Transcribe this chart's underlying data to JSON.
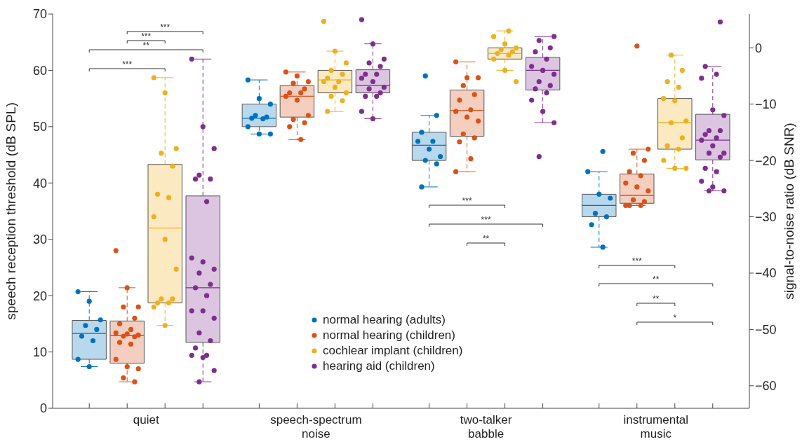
{
  "chart_data": {
    "type": "box",
    "ylabel": "speech reception threshold (dB SPL)",
    "y2label": "signal-to-noise ratio (dB SNR)",
    "categories": [
      "quiet",
      "speech-spectrum noise",
      "two-talker babble",
      "instrumental music"
    ],
    "ylim": [
      0,
      70
    ],
    "yticks": [
      0,
      10,
      20,
      30,
      40,
      50,
      60,
      70
    ],
    "y2lim": [
      -64,
      6
    ],
    "y2ticks": [
      -60,
      -50,
      -40,
      -30,
      -20,
      -10,
      0
    ],
    "grid": false,
    "legend": "bottom",
    "marker": "circle",
    "annotations": [
      "***",
      "**",
      "***",
      "***",
      "***",
      "***",
      "**",
      "***",
      "**",
      "**",
      "*"
    ],
    "series": [
      {
        "name": "normal hearing (adults)",
        "color": "#0072bd",
        "axis": "y",
        "boxes": [
          {
            "low": 7.4,
            "q1": 8.7,
            "median": 13.3,
            "q3": 15.6,
            "high": 20.7
          },
          null,
          null,
          null
        ]
      },
      {
        "name": "normal hearing (children)",
        "color": "#d95319",
        "axis": "y",
        "boxes": [
          {
            "low": 4.7,
            "q1": 8.0,
            "median": 12.9,
            "q3": 15.5,
            "high": 21.4
          },
          null,
          null,
          null
        ]
      },
      {
        "name": "cochlear implant (children)",
        "color": "#edb120",
        "axis": "y",
        "boxes": [
          {
            "low": 14.7,
            "q1": 18.7,
            "median": 32.0,
            "q3": 43.3,
            "high": 58.7
          },
          null,
          null,
          null
        ]
      },
      {
        "name": "hearing aid (children)",
        "color": "#7e2f8e",
        "axis": "y",
        "boxes": [
          {
            "low": 4.7,
            "q1": 11.7,
            "median": 21.4,
            "q3": 37.7,
            "high": 62.0
          },
          null,
          null,
          null
        ]
      },
      {
        "color": "#0072bd",
        "axis": "y2",
        "boxes": [
          null,
          {
            "low": -15.3,
            "q1": -14.0,
            "median": -12.5,
            "q3": -10.0,
            "high": -5.7
          },
          {
            "low": -24.7,
            "q1": -20.0,
            "median": -17.3,
            "q3": -15.0,
            "high": -12.0
          },
          {
            "low": -35.4,
            "q1": -30.0,
            "median": -28.0,
            "q3": -26.0,
            "high": -22.0
          }
        ]
      },
      {
        "color": "#d95319",
        "axis": "y2",
        "boxes": [
          null,
          {
            "low": -16.3,
            "q1": -12.3,
            "median": -8.6,
            "q3": -6.7,
            "high": -4.3
          },
          {
            "low": -22.0,
            "q1": -15.7,
            "median": -11.1,
            "q3": -7.5,
            "high": -2.5
          },
          {
            "low": -28.0,
            "q1": -27.6,
            "median": -26.2,
            "q3": -22.4,
            "high": -18.0
          }
        ]
      },
      {
        "color": "#edb120",
        "axis": "y2",
        "boxes": [
          null,
          {
            "low": -11.3,
            "q1": -8.0,
            "median": -5.7,
            "q3": -4.0,
            "high": -0.6
          },
          {
            "low": -4.0,
            "q1": -2.0,
            "median": -1.0,
            "q3": 0.0,
            "high": 3.0
          },
          {
            "low": -21.4,
            "q1": -18.0,
            "median": -13.3,
            "q3": -9.0,
            "high": -1.3
          }
        ]
      },
      {
        "color": "#7e2f8e",
        "axis": "y2",
        "boxes": [
          null,
          {
            "low": -12.6,
            "q1": -8.0,
            "median": -6.7,
            "q3": -3.9,
            "high": 0.7
          },
          {
            "low": -13.3,
            "q1": -7.5,
            "median": -4.0,
            "q3": -1.7,
            "high": 2.0
          },
          {
            "low": -25.4,
            "q1": -19.9,
            "median": -16.4,
            "q3": -11.8,
            "high": -3.3
          }
        ]
      },
      {
        "type": "scatter",
        "color": "#0072bd",
        "axis": "y",
        "x": [
          "quiet",
          "quiet",
          "quiet",
          "quiet",
          "quiet",
          "quiet",
          "quiet",
          "quiet",
          "quiet"
        ],
        "values": [
          20.7,
          19.0,
          15.7,
          14.7,
          14.0,
          12.8,
          12.0,
          8.7,
          7.4
        ]
      },
      {
        "type": "scatter",
        "color": "#d95319",
        "axis": "y",
        "x": [
          "quiet",
          "quiet",
          "quiet",
          "quiet",
          "quiet",
          "quiet",
          "quiet",
          "quiet",
          "quiet",
          "quiet",
          "quiet",
          "quiet",
          "quiet",
          "quiet",
          "quiet",
          "quiet",
          "quiet",
          "quiet",
          "quiet"
        ],
        "values": [
          28.0,
          21.4,
          18.0,
          18.0,
          16.0,
          15.0,
          14.0,
          13.4,
          13.2,
          13.0,
          12.8,
          12.7,
          11.7,
          11.4,
          8.7,
          7.4,
          7.0,
          5.4,
          4.7
        ]
      },
      {
        "type": "scatter",
        "color": "#edb120",
        "axis": "y",
        "x": [
          "quiet",
          "quiet",
          "quiet",
          "quiet",
          "quiet",
          "quiet",
          "quiet",
          "quiet",
          "quiet",
          "quiet",
          "quiet",
          "quiet",
          "quiet",
          "quiet",
          "quiet",
          "quiet"
        ],
        "values": [
          58.7,
          56.0,
          46.1,
          45.3,
          43.0,
          38.0,
          37.4,
          34.0,
          30.0,
          24.7,
          19.4,
          19.4,
          18.7,
          18.7,
          18.0,
          14.7
        ]
      },
      {
        "type": "scatter",
        "color": "#7e2f8e",
        "axis": "y",
        "x": [
          "quiet",
          "quiet",
          "quiet",
          "quiet",
          "quiet",
          "quiet",
          "quiet",
          "quiet",
          "quiet",
          "quiet",
          "quiet",
          "quiet",
          "quiet",
          "quiet",
          "quiet",
          "quiet",
          "quiet",
          "quiet",
          "quiet",
          "quiet",
          "quiet",
          "quiet",
          "quiet",
          "quiet",
          "quiet"
        ],
        "values": [
          62.0,
          50.0,
          46.1,
          41.4,
          40.7,
          40.7,
          36.7,
          26.7,
          26.0,
          24.7,
          24.0,
          22.0,
          21.4,
          20.0,
          17.3,
          17.3,
          16.0,
          13.4,
          12.0,
          10.7,
          9.4,
          9.4,
          9.0,
          6.7,
          4.7
        ]
      },
      {
        "type": "scatter",
        "color": "#0072bd",
        "axis": "y2",
        "x": [
          "speech-spectrum noise",
          "speech-spectrum noise",
          "speech-spectrum noise",
          "speech-spectrum noise",
          "speech-spectrum noise",
          "speech-spectrum noise",
          "speech-spectrum noise",
          "speech-spectrum noise",
          "speech-spectrum noise",
          "speech-spectrum noise",
          "two-talker babble",
          "two-talker babble",
          "two-talker babble",
          "two-talker babble",
          "two-talker babble",
          "two-talker babble",
          "two-talker babble",
          "two-talker babble",
          "two-talker babble",
          "two-talker babble",
          "instrumental music",
          "instrumental music",
          "instrumental music",
          "instrumental music",
          "instrumental music",
          "instrumental music",
          "instrumental music",
          "instrumental music"
        ],
        "values": [
          -5.7,
          -9.0,
          -10.0,
          -12.0,
          -12.3,
          -12.5,
          -12.6,
          -14.0,
          -15.3,
          -15.3,
          -5.0,
          -12.0,
          -15.0,
          -16.6,
          -16.6,
          -18.0,
          -19.3,
          -20.0,
          -20.6,
          -24.7,
          -18.4,
          -22.0,
          -26.0,
          -26.7,
          -29.4,
          -30.0,
          -31.4,
          -35.4
        ]
      },
      {
        "type": "scatter",
        "color": "#d95319",
        "axis": "y2",
        "x": [
          "speech-spectrum noise",
          "speech-spectrum noise",
          "speech-spectrum noise",
          "speech-spectrum noise",
          "speech-spectrum noise",
          "speech-spectrum noise",
          "speech-spectrum noise",
          "speech-spectrum noise",
          "speech-spectrum noise",
          "speech-spectrum noise",
          "speech-spectrum noise",
          "speech-spectrum noise",
          "speech-spectrum noise",
          "speech-spectrum noise",
          "two-talker babble",
          "two-talker babble",
          "two-talker babble",
          "two-talker babble",
          "two-talker babble",
          "two-talker babble",
          "two-talker babble",
          "two-talker babble",
          "two-talker babble",
          "two-talker babble",
          "two-talker babble",
          "two-talker babble",
          "two-talker babble",
          "two-talker babble",
          "two-talker babble",
          "instrumental music",
          "instrumental music",
          "instrumental music",
          "instrumental music",
          "instrumental music",
          "instrumental music",
          "instrumental music",
          "instrumental music",
          "instrumental music",
          "instrumental music",
          "instrumental music",
          "instrumental music",
          "instrumental music",
          "instrumental music"
        ],
        "values": [
          -4.3,
          -5.0,
          -6.0,
          -6.3,
          -7.3,
          -8.0,
          -8.0,
          -8.6,
          -9.3,
          -12.0,
          -12.7,
          -13.3,
          -14.0,
          -16.3,
          -2.5,
          -5.3,
          -5.3,
          -6.7,
          -8.3,
          -9.3,
          -11.0,
          -11.3,
          -12.3,
          -13.0,
          -15.3,
          -16.0,
          -16.7,
          -19.7,
          -22.0,
          0.3,
          -18.0,
          -18.7,
          -20.0,
          -22.0,
          -22.7,
          -24.0,
          -24.7,
          -25.4,
          -27.0,
          -27.3,
          -28.0,
          -28.0,
          -28.0
        ]
      },
      {
        "type": "scatter",
        "color": "#edb120",
        "axis": "y2",
        "x": [
          "speech-spectrum noise",
          "speech-spectrum noise",
          "speech-spectrum noise",
          "speech-spectrum noise",
          "speech-spectrum noise",
          "speech-spectrum noise",
          "speech-spectrum noise",
          "speech-spectrum noise",
          "speech-spectrum noise",
          "speech-spectrum noise",
          "speech-spectrum noise",
          "speech-spectrum noise",
          "speech-spectrum noise",
          "two-talker babble",
          "two-talker babble",
          "two-talker babble",
          "two-talker babble",
          "two-talker babble",
          "two-talker babble",
          "two-talker babble",
          "two-talker babble",
          "two-talker babble",
          "two-talker babble",
          "two-talker babble",
          "instrumental music",
          "instrumental music",
          "instrumental music",
          "instrumental music",
          "instrumental music",
          "instrumental music",
          "instrumental music",
          "instrumental music",
          "instrumental music",
          "instrumental music",
          "instrumental music",
          "instrumental music",
          "instrumental music",
          "instrumental music"
        ],
        "values": [
          4.7,
          -0.6,
          -2.7,
          -4.0,
          -4.7,
          -5.4,
          -6.0,
          -6.0,
          -7.0,
          -8.0,
          -8.6,
          -9.4,
          -11.3,
          3.0,
          2.0,
          0.7,
          0.0,
          -0.3,
          -0.7,
          -1.0,
          -1.3,
          -2.0,
          -4.0,
          -6.0,
          -1.3,
          -4.0,
          -6.0,
          -7.0,
          -9.0,
          -9.4,
          -13.0,
          -13.3,
          -16.0,
          -17.4,
          -18.0,
          -20.0,
          -21.4,
          -21.4
        ]
      },
      {
        "type": "scatter",
        "color": "#7e2f8e",
        "axis": "y2",
        "x": [
          "speech-spectrum noise",
          "speech-spectrum noise",
          "speech-spectrum noise",
          "speech-spectrum noise",
          "speech-spectrum noise",
          "speech-spectrum noise",
          "speech-spectrum noise",
          "speech-spectrum noise",
          "speech-spectrum noise",
          "speech-spectrum noise",
          "speech-spectrum noise",
          "speech-spectrum noise",
          "speech-spectrum noise",
          "speech-spectrum noise",
          "speech-spectrum noise",
          "speech-spectrum noise",
          "two-talker babble",
          "two-talker babble",
          "two-talker babble",
          "two-talker babble",
          "two-talker babble",
          "two-talker babble",
          "two-talker babble",
          "two-talker babble",
          "two-talker babble",
          "two-talker babble",
          "two-talker babble",
          "two-talker babble",
          "two-talker babble",
          "two-talker babble",
          "two-talker babble",
          "two-talker babble",
          "instrumental music",
          "instrumental music",
          "instrumental music",
          "instrumental music",
          "instrumental music",
          "instrumental music",
          "instrumental music",
          "instrumental music",
          "instrumental music",
          "instrumental music",
          "instrumental music",
          "instrumental music",
          "instrumental music",
          "instrumental music",
          "instrumental music",
          "instrumental music",
          "instrumental music",
          "instrumental music",
          "instrumental music",
          "instrumental music",
          "instrumental music"
        ],
        "values": [
          5.0,
          0.7,
          -2.0,
          -2.7,
          -3.3,
          -4.7,
          -4.7,
          -5.4,
          -6.0,
          -7.0,
          -7.3,
          -8.0,
          -8.6,
          -8.6,
          -11.3,
          -12.6,
          2.0,
          1.3,
          0.0,
          -0.7,
          -2.0,
          -3.3,
          -4.0,
          -4.7,
          -6.0,
          -6.7,
          -7.3,
          -8.0,
          -9.3,
          -11.3,
          -13.3,
          -19.3,
          4.6,
          -3.3,
          -4.7,
          -5.4,
          -11.0,
          -12.0,
          -14.7,
          -14.7,
          -15.4,
          -16.0,
          -16.4,
          -17.4,
          -18.7,
          -18.7,
          -19.4,
          -21.4,
          -22.0,
          -23.7,
          -24.7,
          -25.4,
          -25.4
        ]
      }
    ]
  }
}
